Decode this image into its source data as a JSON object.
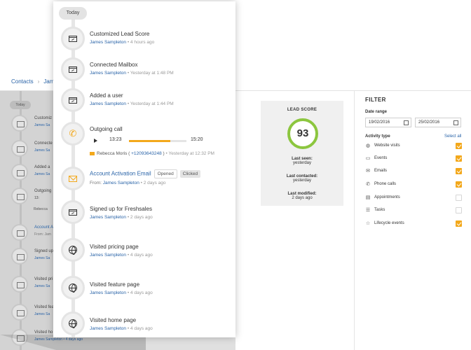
{
  "background": {
    "breadcrumb": {
      "root": "Contacts",
      "current": "Jam"
    },
    "shadow_timeline": {
      "today": "Today",
      "items": [
        {
          "title": "Customiz",
          "who": "James Sa"
        },
        {
          "title": "Connecte",
          "who": "James Sa"
        },
        {
          "title": "Added a",
          "who": "James Sa"
        },
        {
          "title": "Outgoing",
          "who": "13:"
        },
        {
          "title": "Account A",
          "who": "From: Jam"
        },
        {
          "title": "Signed up",
          "who": "James Sa"
        },
        {
          "title": "Visited pri",
          "who": "James Sa"
        },
        {
          "title": "Visited fea",
          "who": "James Sa"
        },
        {
          "title": "Visited ho",
          "who": "James Sampleton • 4 days ago"
        }
      ]
    },
    "shadow_caller": "Rebecca"
  },
  "lead_score": {
    "title": "LEAD SCORE",
    "score": "93",
    "last_seen_label": "Last seen:",
    "last_seen_value": "yesterday",
    "last_contacted_label": "Last contacted:",
    "last_contacted_value": "yesterday",
    "last_modified_label": "Last modified:",
    "last_modified_value": "2 days ago",
    "ring_color": "#8cc63f"
  },
  "filter": {
    "title": "FILTER",
    "date_range_label": "Date range",
    "date_from": "19/02/2016",
    "date_to": "25/02/2016",
    "activity_type_label": "Activity type",
    "select_all": "Select all",
    "activities": [
      {
        "label": "Website visits",
        "icon": "globe-icon",
        "checked": true
      },
      {
        "label": "Events",
        "icon": "events-icon",
        "checked": true
      },
      {
        "label": "Emails",
        "icon": "email-icon",
        "checked": true
      },
      {
        "label": "Phone calls",
        "icon": "phone-icon",
        "checked": true
      },
      {
        "label": "Appointments",
        "icon": "calendar-icon",
        "checked": false
      },
      {
        "label": "Tasks",
        "icon": "tasks-icon",
        "checked": false
      },
      {
        "label": "Lifecycle events",
        "icon": "star-icon",
        "checked": true
      }
    ],
    "accent": "#f3a81b"
  },
  "timeline": {
    "today": "Today",
    "items": [
      {
        "title": "Customized Lead Score",
        "who": "James Sampleton",
        "time": "4 hours ago",
        "icon": "document-icon"
      },
      {
        "title": "Connected Mailbox",
        "who": "James Sampleton",
        "time": "Yesterday at 1:48 PM",
        "icon": "document-icon"
      },
      {
        "title": "Added a user",
        "who": "James Sampleton",
        "time": "Yesterday at 1:44 PM",
        "icon": "document-icon"
      }
    ],
    "call": {
      "title": "Outgoing call",
      "start": "13:23",
      "end": "15:20",
      "progress": 0.72,
      "caller": "Rebecca Moris",
      "phone": "+12093643248",
      "time": "Yesterday at 12:32 PM",
      "icon": "phone-icon"
    },
    "email": {
      "title": "Account Activation Email",
      "opened": "Opened",
      "clicked": "Clicked",
      "from_label": "From:",
      "who": "James Sampleton",
      "time": "2 days ago",
      "icon": "envelope-icon"
    },
    "items2": [
      {
        "title": "Signed up for Freshsales",
        "who": "James Sampleton",
        "time": "2 days ago",
        "icon": "document-icon"
      },
      {
        "title": "Visited pricing page",
        "who": "James Sampleton",
        "time": "4 days ago",
        "icon": "globe-icon"
      },
      {
        "title": "Visited feature page",
        "who": "James Sampleton",
        "time": "4 days ago",
        "icon": "globe-icon"
      },
      {
        "title": "Visited home  page",
        "who": "James Sampleton",
        "time": "4 days ago",
        "icon": "globe-icon"
      }
    ]
  }
}
